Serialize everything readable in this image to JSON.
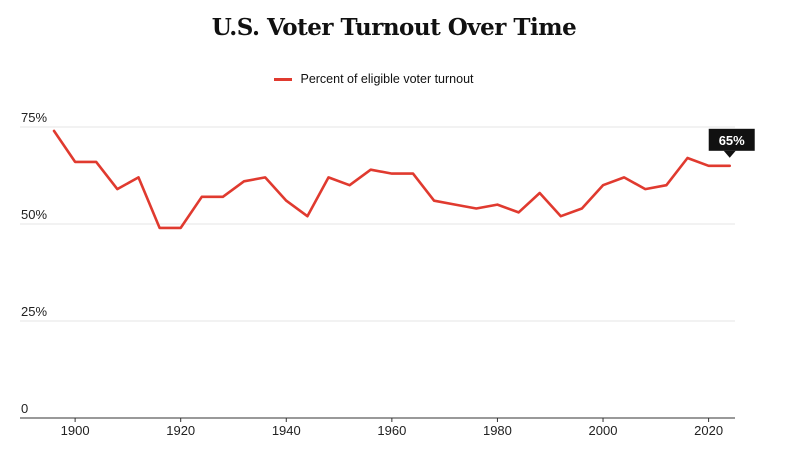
{
  "colors": {
    "line": "#e03a2f",
    "grid": "#e5e5e5",
    "axis": "#333333",
    "callout_bg": "#111111"
  },
  "chart_data": {
    "type": "line",
    "title": "U.S. Voter Turnout Over Time",
    "xlabel": "",
    "ylabel": "",
    "xlim": [
      1896,
      2025
    ],
    "ylim": [
      0,
      75
    ],
    "x_ticks": [
      1900,
      1920,
      1940,
      1960,
      1980,
      2000,
      2020
    ],
    "y_ticks": [
      {
        "value": 0,
        "label": "0"
      },
      {
        "value": 25,
        "label": "25%"
      },
      {
        "value": 50,
        "label": "50%"
      },
      {
        "value": 75,
        "label": "75%"
      }
    ],
    "legend_position": "top-center",
    "grid": true,
    "series": [
      {
        "name": "Percent of eligible voter turnout",
        "x": [
          1896,
          1900,
          1904,
          1908,
          1912,
          1916,
          1920,
          1924,
          1928,
          1932,
          1936,
          1940,
          1944,
          1948,
          1952,
          1956,
          1960,
          1964,
          1968,
          1972,
          1976,
          1980,
          1984,
          1988,
          1992,
          1996,
          2000,
          2004,
          2008,
          2012,
          2016,
          2020,
          2024
        ],
        "values": [
          74,
          66,
          66,
          59,
          62,
          49,
          49,
          57,
          57,
          61,
          62,
          56,
          52,
          62,
          60,
          64,
          63,
          63,
          56,
          55,
          54,
          55,
          53,
          58,
          52,
          54,
          60,
          62,
          59,
          60,
          67,
          65,
          65
        ]
      }
    ],
    "annotation": {
      "x": 2024,
      "value": 65,
      "label": "65%"
    }
  }
}
